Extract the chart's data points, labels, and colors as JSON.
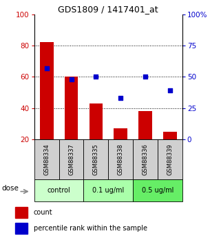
{
  "title": "GDS1809 / 1417401_at",
  "samples": [
    "GSM88334",
    "GSM88337",
    "GSM88335",
    "GSM88338",
    "GSM88336",
    "GSM88339"
  ],
  "bar_bottom": 20,
  "bar_tops": [
    82,
    60,
    43,
    27,
    38,
    25
  ],
  "blue_values": [
    57,
    48,
    50,
    33,
    50,
    39
  ],
  "left_ylim": [
    20,
    100
  ],
  "right_ylim": [
    0,
    100
  ],
  "left_yticks": [
    20,
    40,
    60,
    80,
    100
  ],
  "right_yticks": [
    0,
    25,
    50,
    75,
    100
  ],
  "right_yticklabels": [
    "0",
    "25",
    "50",
    "75",
    "100%"
  ],
  "hlines": [
    40,
    60,
    80
  ],
  "bar_color": "#cc0000",
  "blue_color": "#0000cc",
  "groups": [
    {
      "label": "control",
      "indices": [
        0,
        1
      ],
      "color": "#ccffcc"
    },
    {
      "label": "0.1 ug/ml",
      "indices": [
        2,
        3
      ],
      "color": "#aaffaa"
    },
    {
      "label": "0.5 ug/ml",
      "indices": [
        4,
        5
      ],
      "color": "#66ee66"
    }
  ],
  "dose_label": "dose",
  "legend_count": "count",
  "legend_percentile": "percentile rank within the sample",
  "left_axis_color": "#cc0000",
  "right_axis_color": "#0000cc"
}
